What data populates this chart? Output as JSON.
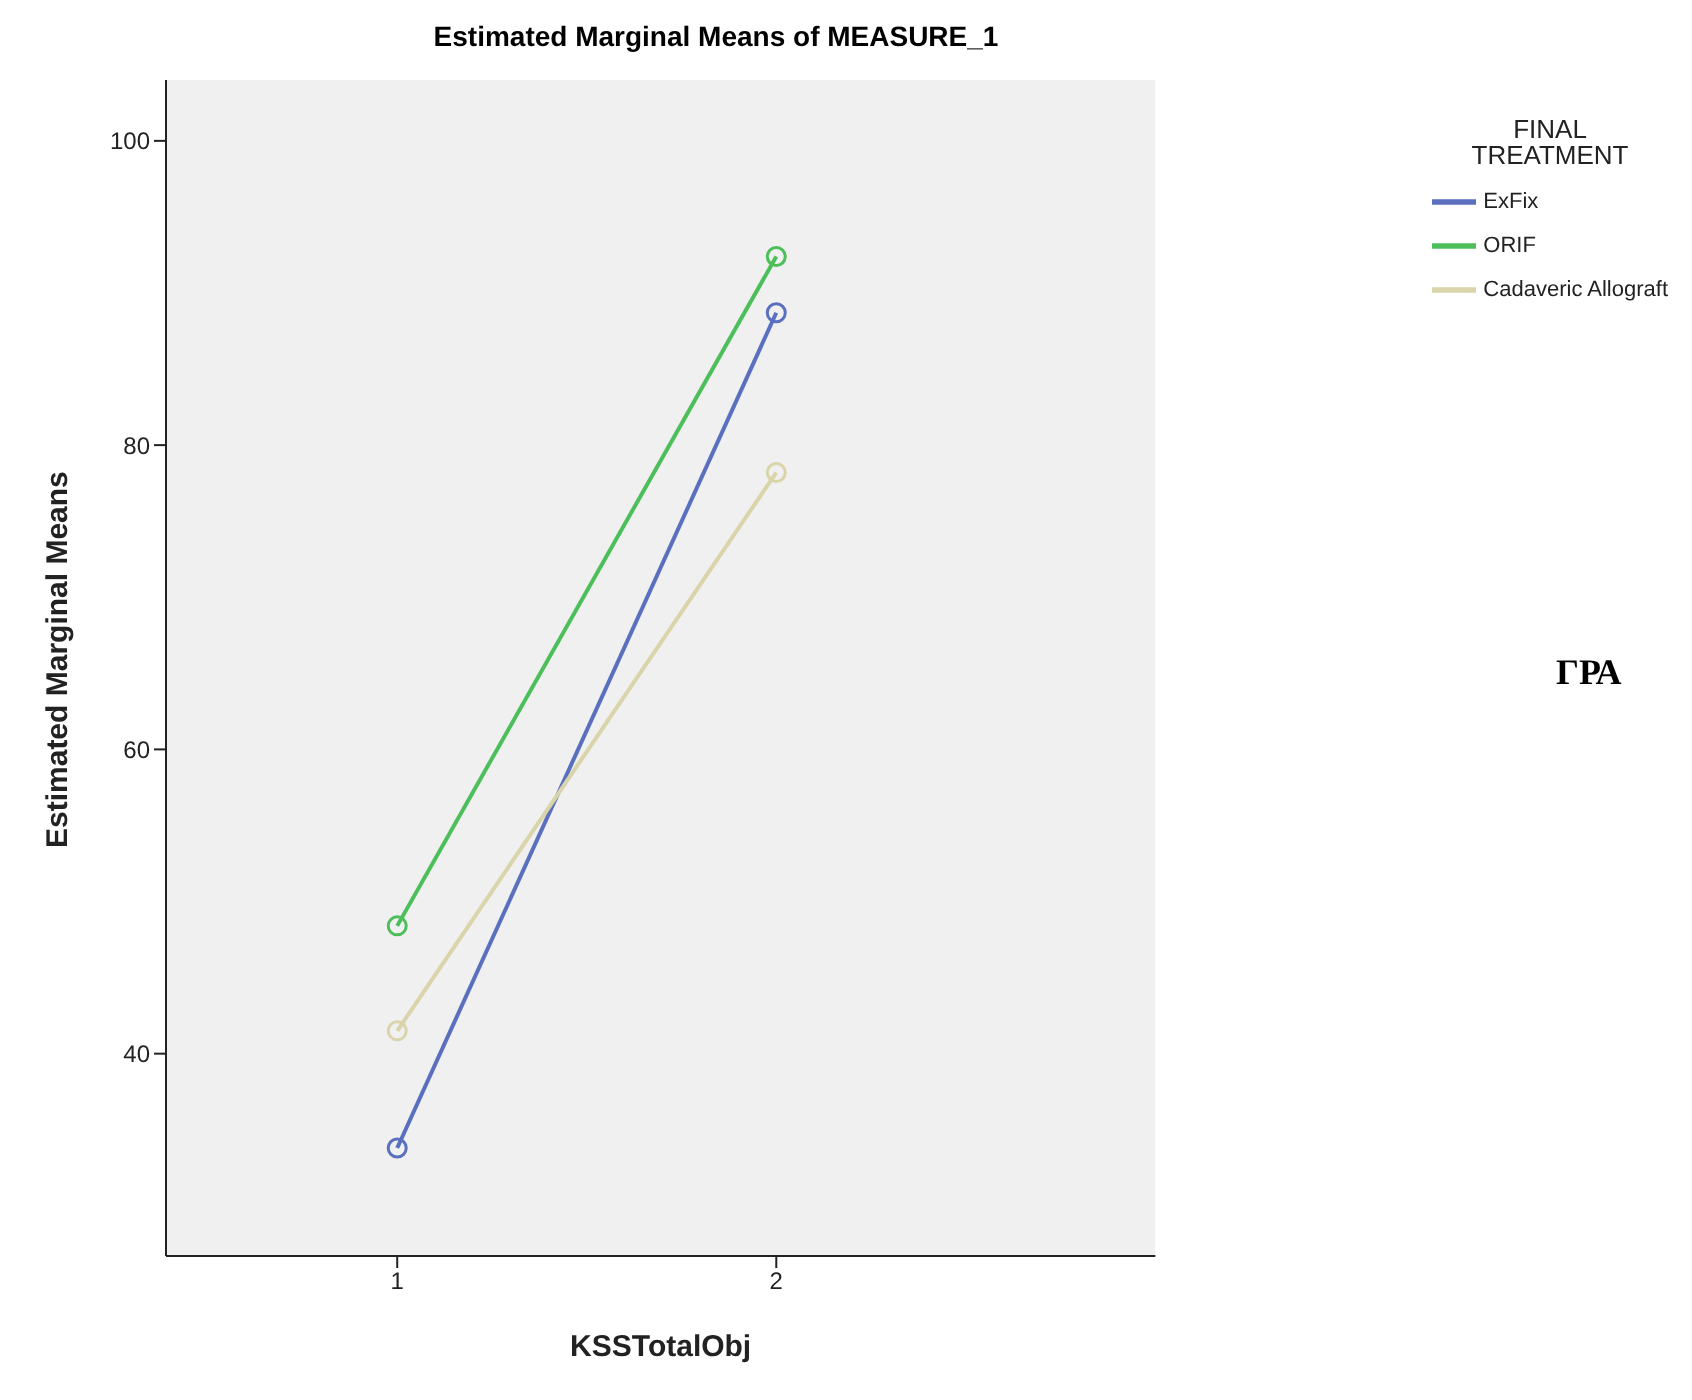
{
  "chart_data": {
    "type": "line",
    "title": "Estimated Marginal Means of MEASURE_1",
    "xlabel": "KSSTotalObj",
    "ylabel": "Estimated Marginal Means",
    "legend_title": "FINAL TREATMENT",
    "x": [
      1,
      2
    ],
    "series": [
      {
        "name": "ExFix",
        "color": "#5a6fbe",
        "values": [
          33.8,
          88.7
        ]
      },
      {
        "name": "ORIF",
        "color": "#4cbf5b",
        "values": [
          48.4,
          92.4
        ]
      },
      {
        "name": "Cadaveric Allograft",
        "color": "#d9d4aa",
        "values": [
          41.5,
          78.2
        ]
      }
    ],
    "xlim": [
      0.39,
      3.0
    ],
    "xticks": [
      1,
      2
    ],
    "ylim": [
      26.7,
      104
    ],
    "yticks": [
      40,
      60,
      80,
      100
    ],
    "marker": "circle",
    "line_style": "solid",
    "grid": false,
    "legend": "top right",
    "annotations": [
      "ΓΡΑ"
    ]
  }
}
